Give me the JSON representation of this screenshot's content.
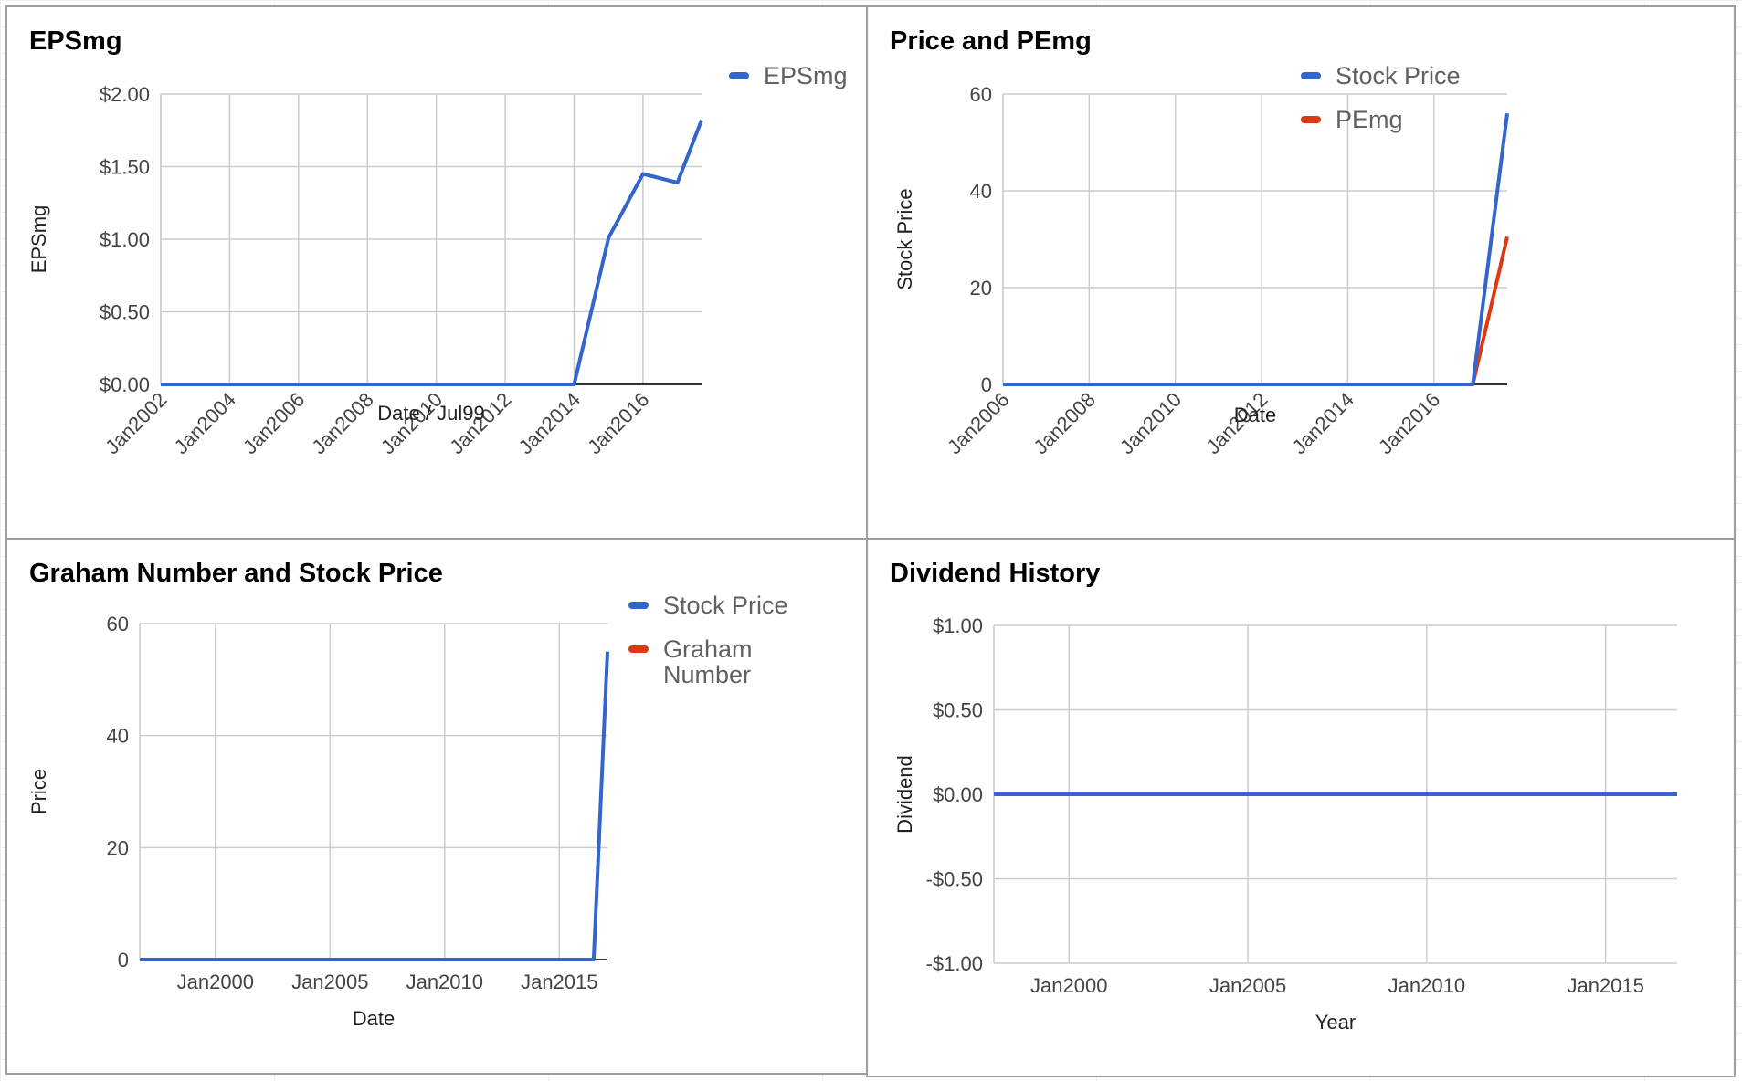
{
  "colors": {
    "blue": "#3366cc",
    "red": "#dc3912",
    "grid": "#cccccc",
    "axis": "#333333"
  },
  "chart_data": [
    {
      "id": "eps",
      "type": "line",
      "title": "EPSmg",
      "xlabel": "Date / Jul99",
      "ylabel": "EPSmg",
      "x_ticks": [
        {
          "label": "Jan2002",
          "x": 2002
        },
        {
          "label": "Jan2004",
          "x": 2004
        },
        {
          "label": "Jan2006",
          "x": 2006
        },
        {
          "label": "Jan2008",
          "x": 2008
        },
        {
          "label": "Jan2010",
          "x": 2010
        },
        {
          "label": "Jan2012",
          "x": 2012
        },
        {
          "label": "Jan2014",
          "x": 2014
        },
        {
          "label": "Jan2016",
          "x": 2016
        }
      ],
      "x_labels_rotated": true,
      "y_ticks": [
        {
          "label": "$0.00",
          "v": 0
        },
        {
          "label": "$0.50",
          "v": 0.5
        },
        {
          "label": "$1.00",
          "v": 1
        },
        {
          "label": "$1.50",
          "v": 1.5
        },
        {
          "label": "$2.00",
          "v": 2
        }
      ],
      "xlim": [
        2002,
        2017.7
      ],
      "ylim": [
        0,
        2
      ],
      "legend_position": "right",
      "series": [
        {
          "name": "EPSmg",
          "color": "#3366cc",
          "points": [
            [
              2002,
              0
            ],
            [
              2003,
              0
            ],
            [
              2004,
              0
            ],
            [
              2005,
              0
            ],
            [
              2006,
              0
            ],
            [
              2007,
              0
            ],
            [
              2008,
              0
            ],
            [
              2009,
              0
            ],
            [
              2010,
              0
            ],
            [
              2011,
              0
            ],
            [
              2012,
              0
            ],
            [
              2013,
              0
            ],
            [
              2014,
              0
            ],
            [
              2015,
              1.01
            ],
            [
              2016,
              1.45
            ],
            [
              2017,
              1.39
            ],
            [
              2017.7,
              1.82
            ]
          ]
        }
      ]
    },
    {
      "id": "price",
      "type": "line",
      "title": "Price and PEmg",
      "xlabel": "Date",
      "ylabel": "Stock Price",
      "x_ticks": [
        {
          "label": "Jan2006",
          "x": 2006
        },
        {
          "label": "Jan2008",
          "x": 2008
        },
        {
          "label": "Jan2010",
          "x": 2010
        },
        {
          "label": "Jan2012",
          "x": 2012
        },
        {
          "label": "Jan2014",
          "x": 2014
        },
        {
          "label": "Jan2016",
          "x": 2016
        }
      ],
      "x_labels_rotated": true,
      "y_ticks": [
        {
          "label": "0",
          "v": 0
        },
        {
          "label": "20",
          "v": 20
        },
        {
          "label": "40",
          "v": 40
        },
        {
          "label": "60",
          "v": 60
        }
      ],
      "xlim": [
        2006,
        2017.7
      ],
      "ylim": [
        0,
        60
      ],
      "legend_position": "right",
      "series": [
        {
          "name": "Stock Price",
          "color": "#3366cc",
          "points": [
            [
              2006,
              0
            ],
            [
              2008,
              0
            ],
            [
              2010,
              0
            ],
            [
              2012,
              0
            ],
            [
              2014,
              0
            ],
            [
              2016,
              0
            ],
            [
              2016.9,
              0
            ],
            [
              2017.7,
              56
            ]
          ]
        },
        {
          "name": "PEmg",
          "color": "#dc3912",
          "points": [
            [
              2008,
              0
            ],
            [
              2010,
              0
            ],
            [
              2012,
              0
            ],
            [
              2014,
              0
            ],
            [
              2016,
              0
            ],
            [
              2016.9,
              0
            ],
            [
              2017.7,
              30.5
            ]
          ]
        }
      ]
    },
    {
      "id": "graham",
      "type": "line",
      "title": "Graham Number and Stock Price",
      "xlabel": "Date",
      "ylabel": "Price",
      "x_ticks": [
        {
          "label": "Jan2000",
          "x": 2000
        },
        {
          "label": "Jan2005",
          "x": 2005
        },
        {
          "label": "Jan2010",
          "x": 2010
        },
        {
          "label": "Jan2015",
          "x": 2015
        }
      ],
      "x_labels_rotated": false,
      "y_ticks": [
        {
          "label": "0",
          "v": 0
        },
        {
          "label": "20",
          "v": 20
        },
        {
          "label": "40",
          "v": 40
        },
        {
          "label": "60",
          "v": 60
        }
      ],
      "xlim": [
        1996.7,
        2017.1
      ],
      "ylim": [
        0,
        60
      ],
      "legend_position": "right",
      "series": [
        {
          "name": "Stock Price",
          "color": "#3366cc",
          "points": [
            [
              1996.7,
              0
            ],
            [
              2000,
              0
            ],
            [
              2005,
              0
            ],
            [
              2010,
              0
            ],
            [
              2015,
              0
            ],
            [
              2016.5,
              0
            ],
            [
              2017.1,
              55
            ]
          ]
        },
        {
          "name": "Graham Number",
          "name_lines": [
            "Graham",
            "Number"
          ],
          "color": "#dc3912",
          "points": [
            [
              1996.7,
              0
            ],
            [
              2000,
              0
            ],
            [
              2005,
              0
            ],
            [
              2007.7,
              0
            ]
          ]
        }
      ]
    },
    {
      "id": "dividend",
      "type": "line",
      "title": "Dividend History",
      "xlabel": "Year",
      "ylabel": "Dividend",
      "x_ticks": [
        {
          "label": "Jan2000",
          "x": 2000
        },
        {
          "label": "Jan2005",
          "x": 2005
        },
        {
          "label": "Jan2010",
          "x": 2010
        },
        {
          "label": "Jan2015",
          "x": 2015
        }
      ],
      "x_labels_rotated": false,
      "y_ticks": [
        {
          "label": "-$1.00",
          "v": -1
        },
        {
          "label": "-$0.50",
          "v": -0.5
        },
        {
          "label": "$0.00",
          "v": 0
        },
        {
          "label": "$0.50",
          "v": 0.5
        },
        {
          "label": "$1.00",
          "v": 1
        }
      ],
      "xlim": [
        1997.9,
        2017
      ],
      "ylim": [
        -1,
        1
      ],
      "zero_axis": false,
      "series": [
        {
          "name": "Dividend",
          "color": "#3366cc",
          "in_legend": false,
          "points": [
            [
              1997.9,
              0
            ],
            [
              2000,
              0
            ],
            [
              2005,
              0
            ],
            [
              2010,
              0
            ],
            [
              2015,
              0
            ],
            [
              2017,
              0
            ]
          ]
        }
      ]
    }
  ]
}
